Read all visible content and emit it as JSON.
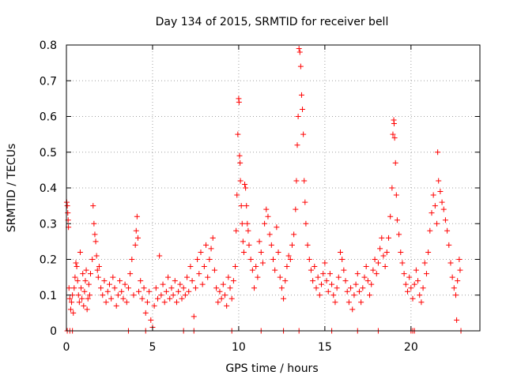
{
  "chart_data": {
    "type": "scatter",
    "title": "Day 134 of 2015, SRMTID for receiver bell",
    "xlabel": "GPS time / hours",
    "ylabel": "SRMTID / TECUs",
    "xlim": [
      0,
      24
    ],
    "ylim": [
      0,
      0.8
    ],
    "x_ticks": [
      0,
      5,
      10,
      15,
      20
    ],
    "x_tick_labels": [
      "0",
      "5",
      "10",
      "15",
      "20"
    ],
    "y_ticks": [
      0,
      0.1,
      0.2,
      0.3,
      0.4,
      0.5,
      0.6,
      0.7,
      0.8
    ],
    "y_tick_labels": [
      "0",
      "0.1",
      "0.2",
      "0.3",
      "0.4",
      "0.5",
      "0.6",
      "0.7",
      "0.8"
    ],
    "grid": true,
    "marker": "+",
    "series": [
      {
        "name": "SRMTID",
        "color": "#ff0000",
        "points": [
          [
            0.02,
            0.36
          ],
          [
            0.05,
            0.35
          ],
          [
            0.08,
            0.33
          ],
          [
            0.1,
            0.31
          ],
          [
            0.12,
            0.29
          ],
          [
            0.15,
            0.12
          ],
          [
            0.2,
            0.09
          ],
          [
            0.25,
            0.06
          ],
          [
            0.3,
            0.08
          ],
          [
            0.35,
            0.1
          ],
          [
            0.4,
            0.05
          ],
          [
            0.45,
            0.12
          ],
          [
            0.5,
            0.15
          ],
          [
            0.55,
            0.19
          ],
          [
            0.6,
            0.18
          ],
          [
            0.65,
            0.14
          ],
          [
            0.7,
            0.1
          ],
          [
            0.75,
            0.08
          ],
          [
            0.8,
            0.22
          ],
          [
            0.85,
            0.12
          ],
          [
            0.9,
            0.09
          ],
          [
            0.95,
            0.16
          ],
          [
            1.0,
            0.07
          ],
          [
            1.05,
            0.11
          ],
          [
            1.1,
            0.14
          ],
          [
            1.15,
            0.17
          ],
          [
            1.2,
            0.06
          ],
          [
            1.25,
            0.09
          ],
          [
            1.3,
            0.13
          ],
          [
            1.35,
            0.1
          ],
          [
            1.4,
            0.16
          ],
          [
            1.5,
            0.2
          ],
          [
            1.55,
            0.35
          ],
          [
            1.6,
            0.3
          ],
          [
            1.65,
            0.27
          ],
          [
            1.7,
            0.25
          ],
          [
            1.75,
            0.21
          ],
          [
            1.8,
            0.17
          ],
          [
            1.85,
            0.15
          ],
          [
            1.9,
            0.18
          ],
          [
            2.0,
            0.12
          ],
          [
            2.1,
            0.1
          ],
          [
            2.2,
            0.14
          ],
          [
            2.3,
            0.08
          ],
          [
            2.4,
            0.11
          ],
          [
            2.5,
            0.13
          ],
          [
            2.6,
            0.09
          ],
          [
            2.7,
            0.15
          ],
          [
            2.8,
            0.12
          ],
          [
            2.9,
            0.07
          ],
          [
            3.0,
            0.1
          ],
          [
            3.1,
            0.14
          ],
          [
            3.2,
            0.11
          ],
          [
            3.3,
            0.09
          ],
          [
            3.4,
            0.13
          ],
          [
            3.5,
            0.08
          ],
          [
            3.6,
            0.12
          ],
          [
            3.7,
            0.16
          ],
          [
            3.8,
            0.2
          ],
          [
            3.9,
            0.1
          ],
          [
            4.0,
            0.24
          ],
          [
            4.05,
            0.28
          ],
          [
            4.1,
            0.32
          ],
          [
            4.15,
            0.26
          ],
          [
            4.2,
            0.11
          ],
          [
            4.3,
            0.14
          ],
          [
            4.4,
            0.09
          ],
          [
            4.5,
            0.12
          ],
          [
            4.6,
            0.05
          ],
          [
            4.7,
            0.08
          ],
          [
            4.8,
            0.11
          ],
          [
            4.9,
            0.03
          ],
          [
            5.0,
            0.01
          ],
          [
            5.1,
            0.07
          ],
          [
            5.2,
            0.12
          ],
          [
            5.3,
            0.09
          ],
          [
            5.4,
            0.21
          ],
          [
            5.5,
            0.1
          ],
          [
            5.6,
            0.13
          ],
          [
            5.7,
            0.08
          ],
          [
            5.8,
            0.11
          ],
          [
            5.9,
            0.15
          ],
          [
            6.0,
            0.09
          ],
          [
            6.1,
            0.12
          ],
          [
            6.2,
            0.1
          ],
          [
            6.3,
            0.14
          ],
          [
            6.4,
            0.08
          ],
          [
            6.5,
            0.11
          ],
          [
            6.6,
            0.13
          ],
          [
            6.7,
            0.09
          ],
          [
            6.8,
            0.12
          ],
          [
            6.9,
            0.1
          ],
          [
            7.0,
            0.15
          ],
          [
            7.1,
            0.11
          ],
          [
            7.2,
            0.18
          ],
          [
            7.3,
            0.14
          ],
          [
            7.4,
            0.04
          ],
          [
            7.5,
            0.12
          ],
          [
            7.6,
            0.2
          ],
          [
            7.7,
            0.16
          ],
          [
            7.8,
            0.22
          ],
          [
            7.9,
            0.13
          ],
          [
            8.0,
            0.18
          ],
          [
            8.1,
            0.24
          ],
          [
            8.2,
            0.15
          ],
          [
            8.3,
            0.2
          ],
          [
            8.4,
            0.23
          ],
          [
            8.5,
            0.26
          ],
          [
            8.6,
            0.17
          ],
          [
            8.7,
            0.12
          ],
          [
            8.8,
            0.08
          ],
          [
            8.9,
            0.11
          ],
          [
            9.0,
            0.09
          ],
          [
            9.1,
            0.13
          ],
          [
            9.2,
            0.1
          ],
          [
            9.3,
            0.07
          ],
          [
            9.4,
            0.15
          ],
          [
            9.5,
            0.12
          ],
          [
            9.6,
            0.09
          ],
          [
            9.7,
            0.14
          ],
          [
            9.8,
            0.18
          ],
          [
            9.85,
            0.28
          ],
          [
            9.9,
            0.38
          ],
          [
            9.95,
            0.55
          ],
          [
            10.0,
            0.65
          ],
          [
            10.02,
            0.64
          ],
          [
            10.05,
            0.49
          ],
          [
            10.08,
            0.47
          ],
          [
            10.1,
            0.42
          ],
          [
            10.15,
            0.35
          ],
          [
            10.2,
            0.3
          ],
          [
            10.25,
            0.25
          ],
          [
            10.3,
            0.22
          ],
          [
            10.35,
            0.41
          ],
          [
            10.4,
            0.4
          ],
          [
            10.45,
            0.35
          ],
          [
            10.5,
            0.3
          ],
          [
            10.55,
            0.28
          ],
          [
            10.6,
            0.24
          ],
          [
            10.7,
            0.2
          ],
          [
            10.8,
            0.17
          ],
          [
            10.9,
            0.12
          ],
          [
            11.0,
            0.18
          ],
          [
            11.1,
            0.15
          ],
          [
            11.2,
            0.25
          ],
          [
            11.3,
            0.22
          ],
          [
            11.4,
            0.19
          ],
          [
            11.5,
            0.3
          ],
          [
            11.6,
            0.34
          ],
          [
            11.7,
            0.32
          ],
          [
            11.8,
            0.27
          ],
          [
            11.9,
            0.24
          ],
          [
            12.0,
            0.2
          ],
          [
            12.1,
            0.17
          ],
          [
            12.2,
            0.29
          ],
          [
            12.3,
            0.22
          ],
          [
            12.4,
            0.15
          ],
          [
            12.5,
            0.12
          ],
          [
            12.6,
            0.09
          ],
          [
            12.7,
            0.14
          ],
          [
            12.8,
            0.18
          ],
          [
            12.9,
            0.21
          ],
          [
            13.0,
            0.2
          ],
          [
            13.1,
            0.24
          ],
          [
            13.2,
            0.27
          ],
          [
            13.3,
            0.34
          ],
          [
            13.35,
            0.42
          ],
          [
            13.4,
            0.52
          ],
          [
            13.45,
            0.6
          ],
          [
            13.5,
            0.79
          ],
          [
            13.55,
            0.78
          ],
          [
            13.6,
            0.74
          ],
          [
            13.65,
            0.66
          ],
          [
            13.7,
            0.62
          ],
          [
            13.75,
            0.55
          ],
          [
            13.8,
            0.42
          ],
          [
            13.85,
            0.36
          ],
          [
            13.9,
            0.3
          ],
          [
            14.0,
            0.24
          ],
          [
            14.1,
            0.2
          ],
          [
            14.2,
            0.17
          ],
          [
            14.3,
            0.14
          ],
          [
            14.4,
            0.18
          ],
          [
            14.5,
            0.12
          ],
          [
            14.6,
            0.15
          ],
          [
            14.7,
            0.1
          ],
          [
            14.8,
            0.13
          ],
          [
            14.9,
            0.16
          ],
          [
            15.0,
            0.19
          ],
          [
            15.1,
            0.14
          ],
          [
            15.2,
            0.11
          ],
          [
            15.3,
            0.16
          ],
          [
            15.4,
            0.13
          ],
          [
            15.5,
            0.1
          ],
          [
            15.6,
            0.08
          ],
          [
            15.7,
            0.12
          ],
          [
            15.8,
            0.15
          ],
          [
            15.9,
            0.22
          ],
          [
            16.0,
            0.2
          ],
          [
            16.1,
            0.17
          ],
          [
            16.2,
            0.14
          ],
          [
            16.3,
            0.11
          ],
          [
            16.4,
            0.08
          ],
          [
            16.5,
            0.12
          ],
          [
            16.6,
            0.06
          ],
          [
            16.7,
            0.1
          ],
          [
            16.8,
            0.13
          ],
          [
            16.9,
            0.16
          ],
          [
            17.0,
            0.11
          ],
          [
            17.1,
            0.08
          ],
          [
            17.2,
            0.12
          ],
          [
            17.3,
            0.15
          ],
          [
            17.4,
            0.18
          ],
          [
            17.5,
            0.14
          ],
          [
            17.6,
            0.1
          ],
          [
            17.7,
            0.13
          ],
          [
            17.8,
            0.17
          ],
          [
            17.9,
            0.2
          ],
          [
            18.0,
            0.16
          ],
          [
            18.1,
            0.19
          ],
          [
            18.2,
            0.23
          ],
          [
            18.3,
            0.26
          ],
          [
            18.4,
            0.21
          ],
          [
            18.5,
            0.18
          ],
          [
            18.6,
            0.22
          ],
          [
            18.7,
            0.26
          ],
          [
            18.8,
            0.32
          ],
          [
            18.9,
            0.4
          ],
          [
            18.95,
            0.55
          ],
          [
            19.0,
            0.59
          ],
          [
            19.02,
            0.58
          ],
          [
            19.05,
            0.54
          ],
          [
            19.1,
            0.47
          ],
          [
            19.15,
            0.38
          ],
          [
            19.2,
            0.31
          ],
          [
            19.3,
            0.27
          ],
          [
            19.4,
            0.22
          ],
          [
            19.5,
            0.19
          ],
          [
            19.6,
            0.16
          ],
          [
            19.7,
            0.13
          ],
          [
            19.8,
            0.11
          ],
          [
            19.9,
            0.15
          ],
          [
            20.0,
            0.12
          ],
          [
            20.1,
            0.09
          ],
          [
            20.2,
            0.13
          ],
          [
            20.3,
            0.17
          ],
          [
            20.4,
            0.14
          ],
          [
            20.5,
            0.1
          ],
          [
            20.6,
            0.08
          ],
          [
            20.7,
            0.12
          ],
          [
            20.8,
            0.19
          ],
          [
            20.9,
            0.16
          ],
          [
            21.0,
            0.22
          ],
          [
            21.1,
            0.28
          ],
          [
            21.2,
            0.33
          ],
          [
            21.3,
            0.38
          ],
          [
            21.4,
            0.35
          ],
          [
            21.5,
            0.3
          ],
          [
            21.55,
            0.5
          ],
          [
            21.6,
            0.42
          ],
          [
            21.7,
            0.39
          ],
          [
            21.8,
            0.36
          ],
          [
            21.9,
            0.34
          ],
          [
            22.0,
            0.31
          ],
          [
            22.1,
            0.28
          ],
          [
            22.2,
            0.24
          ],
          [
            22.3,
            0.19
          ],
          [
            22.4,
            0.15
          ],
          [
            22.5,
            0.12
          ],
          [
            22.6,
            0.1
          ],
          [
            22.65,
            0.03
          ],
          [
            22.7,
            0.14
          ],
          [
            22.8,
            0.2
          ],
          [
            22.85,
            0.17
          ]
        ]
      }
    ],
    "zero_points_x": [
      0.05,
      0.2,
      0.35,
      3.6,
      4.6,
      6.8,
      7.4,
      9.6,
      11.3,
      12.6,
      13.5,
      15.4,
      16.9,
      18.1,
      20.0,
      20.1,
      20.2,
      22.9
    ]
  }
}
